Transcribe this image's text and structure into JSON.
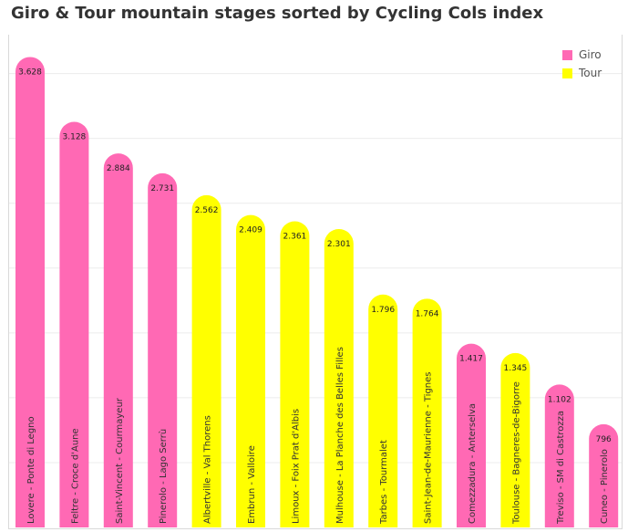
{
  "title": "Giro & Tour mountain stages sorted by Cycling Cols index",
  "colors": {
    "Giro": "#ff69b4",
    "Tour": "#ffff00",
    "grid": "#ececec"
  },
  "legend": [
    {
      "label": "Giro",
      "color": "#ff69b4"
    },
    {
      "label": "Tour",
      "color": "#ffff00"
    }
  ],
  "chart_data": {
    "type": "bar",
    "title": "Giro & Tour mountain stages sorted by Cycling Cols index",
    "legend_placement": "top-right",
    "grid": true,
    "ylim": [
      0,
      3800
    ],
    "categories": [
      "Lovere - Ponte di Legno",
      "Feltre - Croce d'Aune",
      "Saint-Vincent - Courmayeur",
      "Pinerolo - Lago Serrù",
      "Albertville - Val Thorens",
      "Embrun - Valloire",
      "Limoux - Foix Prat d'Albis",
      "Mulhouse - La Planche des Belles Filles",
      "Tarbes - Tourmalet",
      "Saint-Jean-de-Maurienne - Tignes",
      "Comezzadura - Anterselva",
      "Toulouse - Bagneres-de-Bigorre",
      "Treviso - SM di Castrozza",
      "Cuneo - Pinerolo"
    ],
    "values": [
      3628,
      3128,
      2884,
      2731,
      2562,
      2409,
      2361,
      2301,
      1796,
      1764,
      1417,
      1345,
      1102,
      796
    ],
    "value_labels": [
      "3.628",
      "3.128",
      "2.884",
      "2.731",
      "2.562",
      "2.409",
      "2.361",
      "2.301",
      "1.796",
      "1.764",
      "1.417",
      "1.345",
      "1.102",
      "796"
    ],
    "race": [
      "Giro",
      "Giro",
      "Giro",
      "Giro",
      "Tour",
      "Tour",
      "Tour",
      "Tour",
      "Tour",
      "Tour",
      "Giro",
      "Tour",
      "Giro",
      "Giro"
    ]
  }
}
